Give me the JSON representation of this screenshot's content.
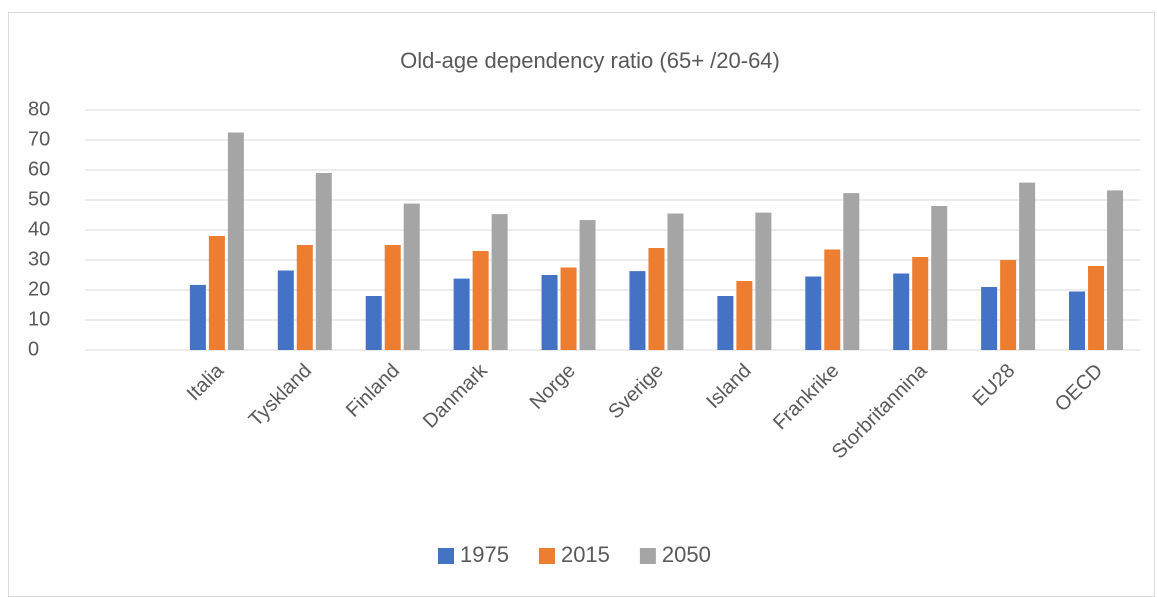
{
  "chart_data": {
    "type": "bar",
    "title": "Old-age dependency ratio (65+ /20-64)",
    "categories": [
      null,
      "Italia",
      "Tyskland",
      "Finland",
      "Danmark",
      "Norge",
      "Sverige",
      "Island",
      "Frankrike",
      "Storbritannina",
      "EU28",
      "OECD"
    ],
    "series": [
      {
        "name": "1975",
        "color": "#4472c4",
        "values": [
          null,
          21.7,
          26.5,
          18,
          23.8,
          25,
          26.3,
          18,
          24.5,
          25.5,
          21,
          19.5
        ]
      },
      {
        "name": "2015",
        "color": "#ed7d31",
        "values": [
          null,
          38,
          35,
          35,
          33,
          27.5,
          34,
          23,
          33.5,
          31,
          30,
          28
        ]
      },
      {
        "name": "2050",
        "color": "#a5a5a5",
        "values": [
          null,
          72.5,
          59,
          48.8,
          45.3,
          43.3,
          45.5,
          45.8,
          52.3,
          48,
          55.8,
          53.2
        ]
      }
    ],
    "ylim": [
      0,
      80
    ],
    "yticks": [
      0,
      10,
      20,
      30,
      40,
      50,
      60,
      70,
      80
    ],
    "grid": true,
    "legend": "bottom"
  }
}
